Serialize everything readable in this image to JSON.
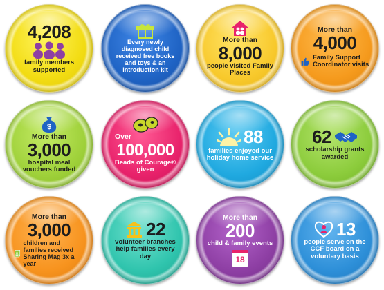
{
  "colors": {
    "yellow": "#f4e21d",
    "blue": "#1f63c4",
    "gold": "#f8c92c",
    "orange": "#f59a1d",
    "green": "#9fd13a",
    "pink": "#e8226b",
    "sky": "#20a9e0",
    "lime": "#8ccc3c",
    "amber": "#f7931e",
    "teal": "#2fc4ad",
    "purple": "#8e3fa4",
    "azure": "#2d8fd8"
  },
  "badges": [
    {
      "pre": "",
      "big": "4,208",
      "desc": "family members supported",
      "icon": "people-group-icon"
    },
    {
      "pre": "",
      "big": "",
      "desc": "Every newly diagnosed child received free books and toys & an introduction kit",
      "icon": "gift-box-icon"
    },
    {
      "pre": "More than",
      "big": "8,000",
      "desc": "people visited Family Places",
      "icon": "house-family-icon"
    },
    {
      "pre": "More than",
      "big": "4,000",
      "desc": "Family Support Coordinator visits",
      "icon": "thumbs-up-icon"
    },
    {
      "pre": "More than",
      "big": "3,000",
      "desc": "hospital meal vouchers funded",
      "icon": "money-bag-icon"
    },
    {
      "pre": "Over",
      "big": "100,000",
      "desc": "Beads of Courage® given",
      "icon": "beads-icon"
    },
    {
      "pre": "",
      "big": "88",
      "desc": "families enjoyed our holiday home service",
      "icon": "sun-icon"
    },
    {
      "pre": "",
      "big": "62",
      "desc": "scholarship grants awarded",
      "icon": "handshake-icon"
    },
    {
      "pre": "More than",
      "big": "3,000",
      "desc": "children and families received Sharing Mag 3x a year",
      "icon": "magazine-icon"
    },
    {
      "pre": "",
      "big": "22",
      "desc": "volunteer branches help families every day",
      "icon": "building-icon"
    },
    {
      "pre": "More than",
      "big": "200",
      "desc": "child & family events",
      "icon": "calendar-icon",
      "calendar_day": "18"
    },
    {
      "pre": "",
      "big": "13",
      "desc": "people serve on the CCF board on a voluntary basis",
      "icon": "heart-person-icon"
    }
  ]
}
